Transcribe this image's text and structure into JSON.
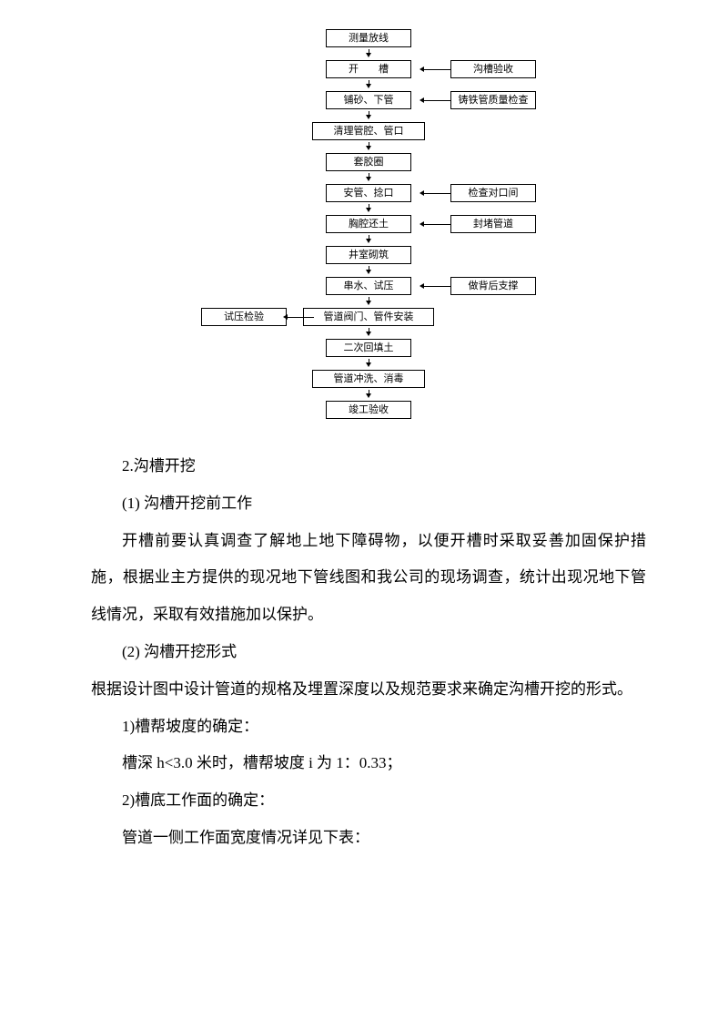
{
  "flowchart": {
    "type": "flowchart",
    "box_border_color": "#000000",
    "box_bg_color": "#ffffff",
    "font_size": 11,
    "main": [
      "测量放线",
      "开　　槽",
      "铺砂、下管",
      "清理管腔、管口",
      "套胶圈",
      "安管、捻口",
      "胸腔还土",
      "井室砌筑",
      "串水、试压",
      "管道阀门、管件安装",
      "二次回填土",
      "管道冲洗、消毒",
      "竣工验收"
    ],
    "sides": [
      {
        "attach_index": 1,
        "side": "right",
        "label": "沟槽验收",
        "dir": "in"
      },
      {
        "attach_index": 2,
        "side": "right",
        "label": "铸铁管质量检查",
        "dir": "in"
      },
      {
        "attach_index": 5,
        "side": "right",
        "label": "检查对口间",
        "dir": "in"
      },
      {
        "attach_index": 6,
        "side": "right",
        "label": "封堵管道",
        "dir": "in"
      },
      {
        "attach_index": 8,
        "side": "right",
        "label": "做背后支撑",
        "dir": "in"
      },
      {
        "attach_index": 9,
        "side": "left",
        "label": "试压检验",
        "dir": "out"
      }
    ]
  },
  "text": {
    "h2": "2.沟槽开挖",
    "s1_title": "(1) 沟槽开挖前工作",
    "s1_p1": "开槽前要认真调查了解地上地下障碍物，以便开槽时采取妥善加固保护措施，根据业主方提供的现况地下管线图和我公司的现场调查，统计出现况地下管线情况，采取有效措施加以保护。",
    "s2_title": "(2) 沟槽开挖形式",
    "s2_p1": "根据设计图中设计管道的规格及埋置深度以及规范要求来确定沟槽开挖的形式。",
    "s2_i1_title": "1)槽帮坡度的确定：",
    "s2_i1_body": "槽深 h<3.0 米时，槽帮坡度 i 为 1：0.33；",
    "s2_i2_title": "2)槽底工作面的确定：",
    "s2_i2_body": "管道一侧工作面宽度情况详见下表："
  }
}
